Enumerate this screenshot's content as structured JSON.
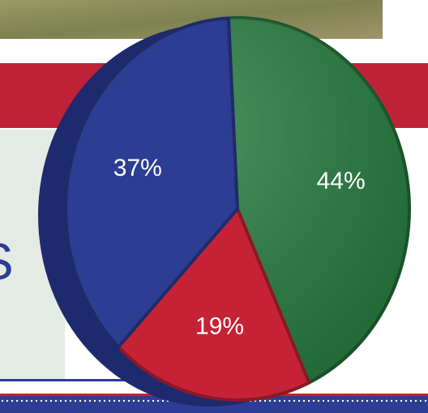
{
  "colors": {
    "green": "#247a3e",
    "red": "#c62236",
    "blue": "#2c3d93",
    "banner_red": "#bf2237",
    "panel_bg": "#e4ebe4",
    "grass": "#8a8a5a"
  },
  "partial_text": "S",
  "chart_data": {
    "type": "pie",
    "title": "",
    "values": [
      44,
      19,
      37
    ],
    "labels": [
      "44%",
      "19%",
      "37%"
    ],
    "colors": [
      "#247a3e",
      "#c62236",
      "#2c3d93"
    ],
    "start_angle_deg": -3,
    "direction": "clockwise",
    "legend": "none",
    "grid": false
  }
}
